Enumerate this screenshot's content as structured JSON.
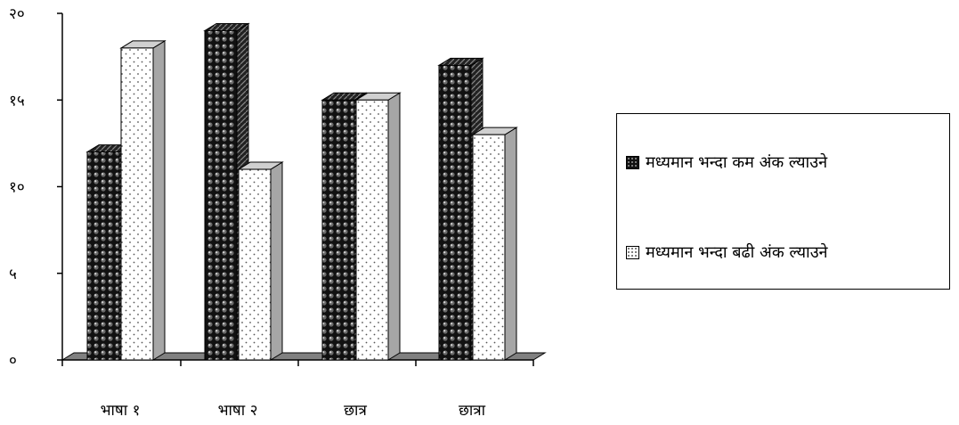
{
  "chart_data": {
    "type": "bar",
    "categories": [
      "भाषा १",
      "भाषा २",
      "छात्र",
      "छात्रा"
    ],
    "series": [
      {
        "name": "मध्यमान भन्दा कम अंक ल्याउने",
        "values": [
          12,
          19,
          15,
          17
        ],
        "pattern": "dark-circles"
      },
      {
        "name": "मध्यमान भन्दा बढी अंक ल्याउने",
        "values": [
          18,
          11,
          15,
          13
        ],
        "pattern": "light-dots"
      }
    ],
    "y_ticks": [
      "०",
      "५",
      "१०",
      "१५",
      "२०"
    ],
    "y_tick_values": [
      0,
      5,
      10,
      15,
      20
    ],
    "ylim": [
      0,
      20
    ],
    "title": "",
    "xlabel": "",
    "ylabel": "",
    "legend_position": "right",
    "grid": false,
    "colors": {
      "axis": "#000000",
      "floor": "#808080",
      "side": "#a6a6a6",
      "dark_fill": "#000000",
      "light_fill": "#ffffff"
    }
  }
}
